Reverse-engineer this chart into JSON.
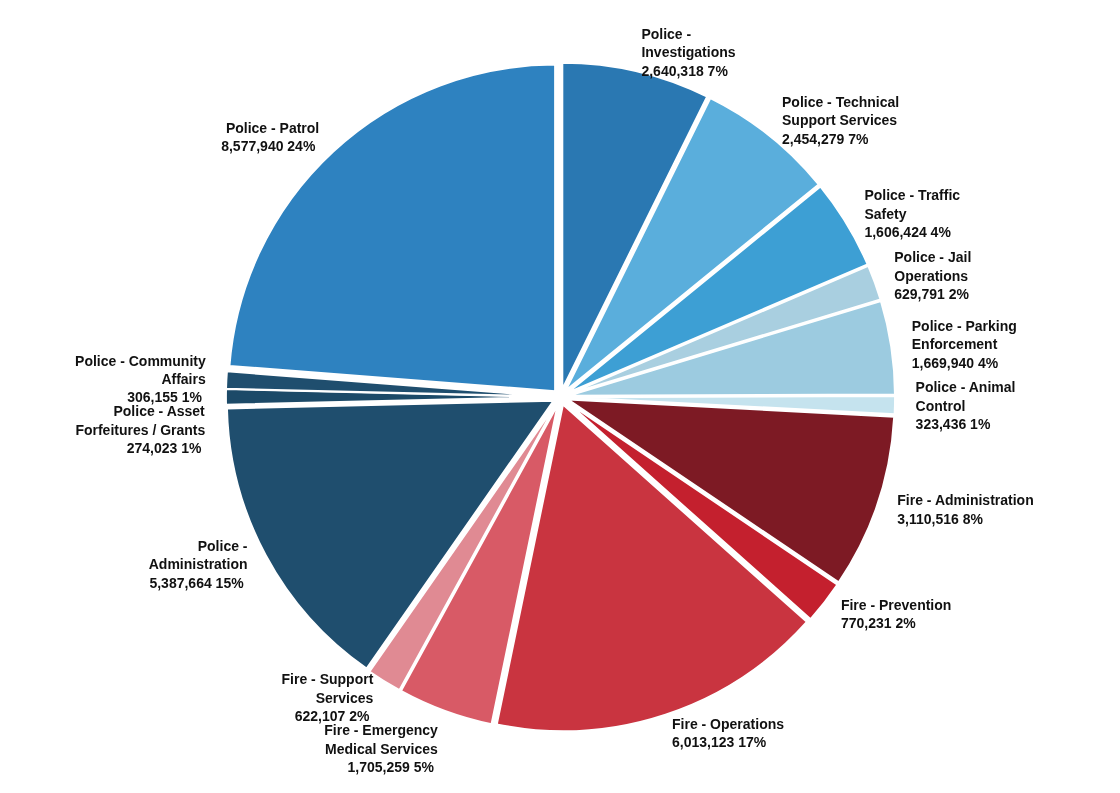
{
  "chart_data": {
    "type": "pie",
    "categories": [
      "Police - Investigations",
      "Police - Technical Support Services",
      "Police - Traffic Safety",
      "Police - Jail Operations",
      "Police - Parking Enforcement",
      "Police - Animal Control",
      "Fire - Administration",
      "Fire - Prevention",
      "Fire - Operations",
      "Fire - Emergency Medical Services",
      "Fire - Support Services",
      "Police - Administration",
      "Police - Asset Forfeitures / Grants",
      "Police - Community Affairs",
      "Police - Patrol"
    ],
    "values": [
      2640318,
      2454279,
      1606424,
      629791,
      1669940,
      323436,
      3110516,
      770231,
      6013123,
      1705259,
      622107,
      5387664,
      274023,
      306155,
      8577940
    ],
    "colors": [
      "#2a78b2",
      "#5aaedc",
      "#3d9fd4",
      "#a9cfe0",
      "#9ccbe0",
      "#c5e3ee",
      "#7d1a24",
      "#c4202e",
      "#c93440",
      "#d85a66",
      "#e08a93",
      "#1f4e6e",
      "#1c4a68",
      "#1f4e6e",
      "#2e82c0"
    ],
    "value_labels": [
      "2,640,318  7%",
      "2,454,279  7%",
      "1,606,424  4%",
      "629,791  2%",
      "1,669,940  4%",
      "323,436  1%",
      "3,110,516  8%",
      "770,231  2%",
      "6,013,123  17%",
      "1,705,259  5%",
      "622,107  2%",
      "5,387,664  15%",
      "274,023  1%",
      "306,155  1%",
      "8,577,940  24%"
    ]
  }
}
